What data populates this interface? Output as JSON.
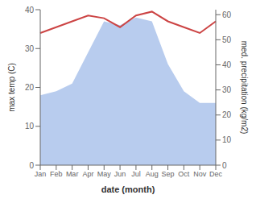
{
  "chart_data": {
    "type": "area_line",
    "categories": [
      "Jan",
      "Feb",
      "Mar",
      "Apr",
      "May",
      "Jun",
      "Jul",
      "Aug",
      "Sep",
      "Oct",
      "Nov",
      "Dec"
    ],
    "series": [
      {
        "type": "area",
        "color": "#b8ccee",
        "values": [
          18,
          19,
          21,
          29,
          37,
          36,
          38,
          37,
          26,
          19,
          16,
          16
        ]
      },
      {
        "type": "line",
        "color": "#cc4444",
        "values": [
          34.0,
          35.5,
          37.0,
          38.5,
          37.8,
          35.5,
          38.5,
          39.5,
          37.0,
          35.5,
          34.0,
          37.0
        ]
      }
    ],
    "xlabel": "date (month)",
    "ylabel": "max temp (C)",
    "y2label": "med. precipitation (kg/m2)",
    "ylim": [
      0,
      40
    ],
    "yticks": [
      0,
      10,
      20,
      30,
      40
    ],
    "y2lim": [
      0,
      62
    ],
    "y2ticks": [
      0,
      10,
      20,
      30,
      40,
      50,
      60
    ],
    "grid": false
  }
}
